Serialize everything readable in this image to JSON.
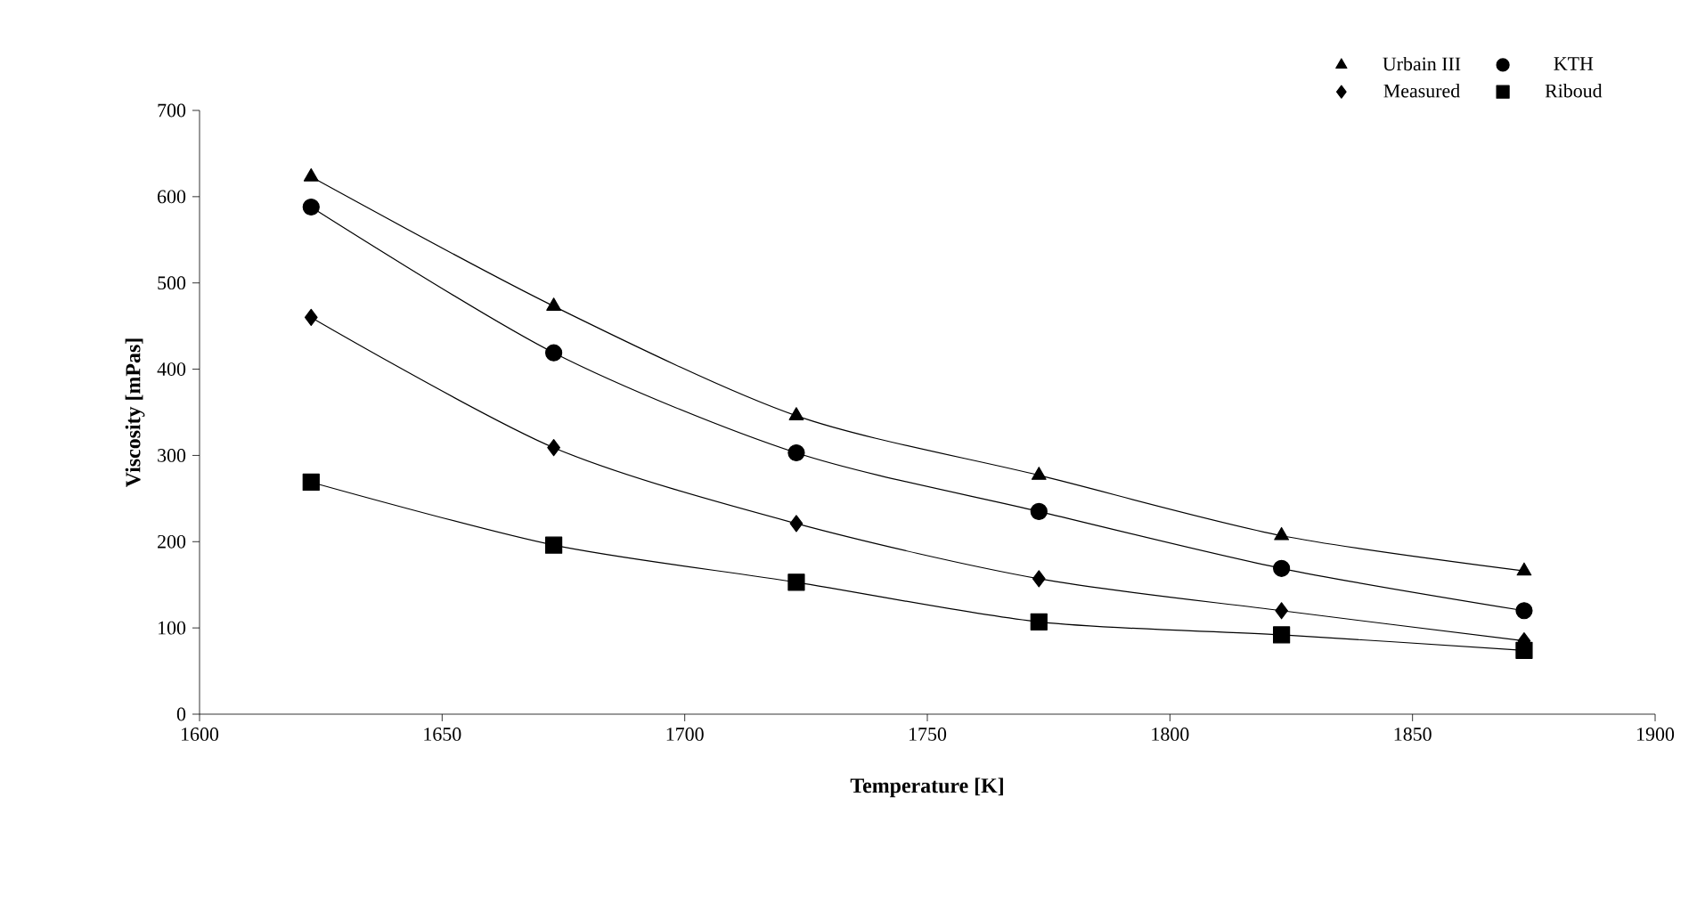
{
  "chart_data": {
    "type": "line",
    "xlabel": "Temperature [K]",
    "ylabel": "Viscosity [mPas]",
    "xlim": [
      1600,
      1900
    ],
    "xticks": [
      1600,
      1650,
      1700,
      1750,
      1800,
      1850,
      1900
    ],
    "ylim": [
      0,
      700
    ],
    "yticks": [
      0,
      100,
      200,
      300,
      400,
      500,
      600,
      700
    ],
    "grid": false,
    "legend": "top right",
    "line_style": "solid",
    "series": [
      {
        "name": "Urbain III",
        "color": "#000000",
        "marker": "triangle",
        "x": [
          1623,
          1673,
          1723,
          1773,
          1823,
          1873
        ],
        "values": [
          623,
          473,
          346,
          277,
          207,
          166
        ]
      },
      {
        "name": "KTH",
        "color": "#000000",
        "marker": "circle",
        "x": [
          1623,
          1673,
          1723,
          1773,
          1823,
          1873
        ],
        "values": [
          588,
          419,
          303,
          235,
          169,
          120
        ]
      },
      {
        "name": "Measured",
        "color": "#000000",
        "marker": "diamond",
        "x": [
          1623,
          1673,
          1723,
          1773,
          1823,
          1873
        ],
        "values": [
          460,
          309,
          221,
          157,
          120,
          85
        ]
      },
      {
        "name": "Riboud",
        "color": "#000000",
        "marker": "square",
        "x": [
          1623,
          1673,
          1723,
          1773,
          1823,
          1873
        ],
        "values": [
          269,
          196,
          153,
          107,
          92,
          74
        ]
      }
    ]
  }
}
